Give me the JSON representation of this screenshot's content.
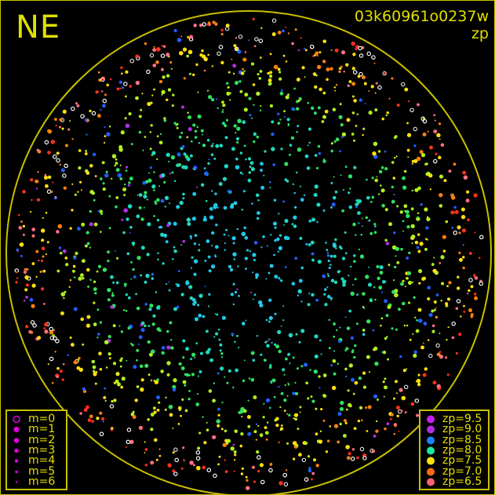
{
  "header": {
    "direction": "NE",
    "title": "03k60961o0237w",
    "subtitle": "zp"
  },
  "chart_data": {
    "type": "scatter",
    "title": "03k60961o0237w",
    "color_quantity": "zp",
    "size_quantity": "m",
    "field_circle": true,
    "size_legend": [
      {
        "label": "m=0",
        "m": 0
      },
      {
        "label": "m=1",
        "m": 1
      },
      {
        "label": "m=2",
        "m": 2
      },
      {
        "label": "m=3",
        "m": 3
      },
      {
        "label": "m=4",
        "m": 4
      },
      {
        "label": "m=5",
        "m": 5
      },
      {
        "label": "m=6",
        "m": 6
      }
    ],
    "color_legend": [
      {
        "label": "zp=9.5",
        "zp": 9.5,
        "color": "#c81ef0"
      },
      {
        "label": "zp=9.0",
        "zp": 9.0,
        "color": "#b02ee0"
      },
      {
        "label": "zp=8.5",
        "zp": 8.5,
        "color": "#1e82ff"
      },
      {
        "label": "zp=8.0",
        "zp": 8.0,
        "color": "#1ee8a0"
      },
      {
        "label": "zp=7.5",
        "zp": 7.5,
        "color": "#ffe010"
      },
      {
        "label": "zp=7.0",
        "zp": 7.0,
        "color": "#ff6a10"
      },
      {
        "label": "zp=6.5",
        "zp": 6.5,
        "color": "#ff6070"
      }
    ],
    "colors": {
      "frame": "#c8c000",
      "text": "#e0e000",
      "legend_marker": "#e000e0",
      "unmeasured": "#ffffff"
    }
  }
}
